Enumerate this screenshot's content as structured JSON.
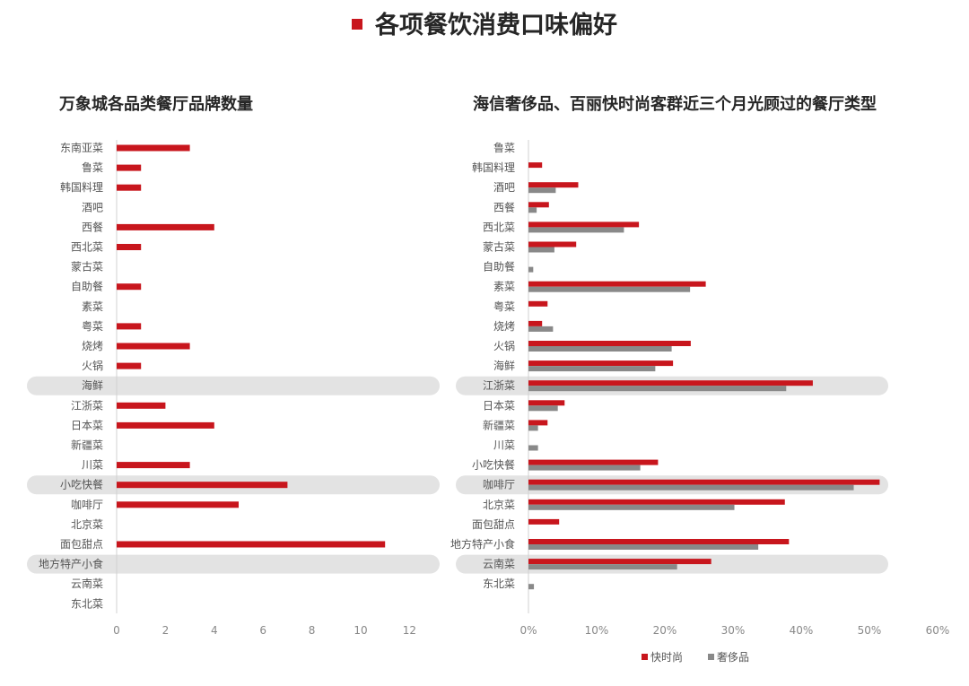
{
  "header": {
    "title": "各项餐饮消费口味偏好"
  },
  "colors": {
    "accent": "#c8161d",
    "gray": "#898989",
    "highlight": "#e3e3e3"
  },
  "chart_data": [
    {
      "type": "bar",
      "orientation": "horizontal",
      "title": "万象城各品类餐厅品牌数量",
      "xlim": [
        0,
        12
      ],
      "xticks": [
        0,
        2,
        4,
        6,
        8,
        10,
        12
      ],
      "categories": [
        "东南亚菜",
        "鲁菜",
        "韩国料理",
        "酒吧",
        "西餐",
        "西北菜",
        "蒙古菜",
        "自助餐",
        "素菜",
        "粤菜",
        "烧烤",
        "火锅",
        "海鲜",
        "江浙菜",
        "日本菜",
        "新疆菜",
        "川菜",
        "小吃快餐",
        "咖啡厅",
        "北京菜",
        "面包甜点",
        "地方特产小食",
        "云南菜",
        "东北菜"
      ],
      "values": [
        3,
        1,
        1,
        0,
        4,
        1,
        0,
        1,
        0,
        1,
        3,
        1,
        0,
        2,
        4,
        0,
        3,
        7,
        5,
        0,
        11,
        0,
        0,
        0
      ],
      "highlighted": [
        "海鲜",
        "小吃快餐",
        "地方特产小食"
      ]
    },
    {
      "type": "bar",
      "orientation": "horizontal",
      "title": "海信奢侈品、百丽快时尚客群近三个月光顾过的餐厅类型",
      "xlim": [
        0,
        60
      ],
      "xticks": [
        "0%",
        "10%",
        "20%",
        "30%",
        "40%",
        "50%",
        "60%"
      ],
      "categories": [
        "鲁菜",
        "韩国料理",
        "酒吧",
        "西餐",
        "西北菜",
        "蒙古菜",
        "自助餐",
        "素菜",
        "粤菜",
        "烧烤",
        "火锅",
        "海鲜",
        "江浙菜",
        "日本菜",
        "新疆菜",
        "川菜",
        "小吃快餐",
        "咖啡厅",
        "北京菜",
        "面包甜点",
        "地方特产小食",
        "云南菜",
        "东北菜"
      ],
      "series": [
        {
          "name": "快时尚",
          "values": [
            0,
            2,
            7.3,
            3,
            16.2,
            7,
            0,
            26,
            2.8,
            2,
            23.8,
            21.2,
            41.7,
            5.3,
            2.8,
            0,
            19,
            51.5,
            37.6,
            4.5,
            38.2,
            26.8,
            0
          ]
        },
        {
          "name": "奢侈品",
          "values": [
            0,
            0,
            4,
            1.2,
            14,
            3.8,
            0.7,
            23.7,
            0,
            3.6,
            21,
            18.6,
            37.8,
            4.3,
            1.4,
            1.4,
            16.4,
            47.7,
            30.2,
            0,
            33.7,
            21.8,
            0.8
          ]
        }
      ],
      "highlighted": [
        "江浙菜",
        "咖啡厅",
        "云南菜"
      ],
      "legend_position": "bottom-right"
    }
  ]
}
